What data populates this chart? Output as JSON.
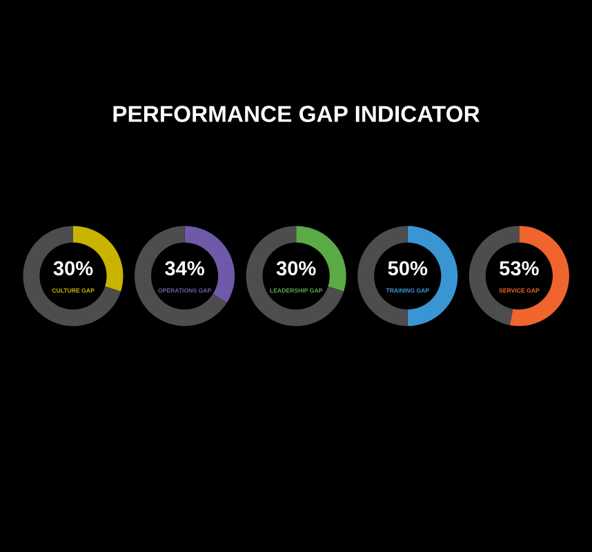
{
  "chart_data": [
    {
      "type": "other",
      "title": "PERFORMANCE GAP INDICATOR"
    },
    {
      "type": "donut",
      "title": "CULTURE GAP",
      "categories": [
        null,
        null
      ],
      "values": [
        30,
        70
      ],
      "colors": [
        "#c8b400",
        "#4d4d4d"
      ],
      "value_labels": [
        "30%",
        null
      ]
    },
    {
      "type": "donut",
      "title": "OPERATIONS GAP",
      "categories": [
        null,
        null
      ],
      "values": [
        34,
        66
      ],
      "colors": [
        "#6e5aa8",
        "#4d4d4d"
      ],
      "value_labels": [
        "34%",
        null
      ]
    },
    {
      "type": "donut",
      "title": "LEADERSHIP GAP",
      "categories": [
        null,
        null
      ],
      "values": [
        30,
        70
      ],
      "colors": [
        "#5aaa46",
        "#4d4d4d"
      ],
      "value_labels": [
        "30%",
        null
      ]
    },
    {
      "type": "donut",
      "title": "TRAINING GAP",
      "categories": [
        null,
        null
      ],
      "values": [
        50,
        50
      ],
      "colors": [
        "#3a96d2",
        "#4d4d4d"
      ],
      "value_labels": [
        "50%",
        null
      ]
    },
    {
      "type": "donut",
      "title": "SERVICE GAP",
      "categories": [
        null,
        null
      ],
      "values": [
        53,
        47
      ],
      "colors": [
        "#f0642d",
        "#4d4d4d"
      ],
      "value_labels": [
        "53%",
        null
      ]
    }
  ]
}
